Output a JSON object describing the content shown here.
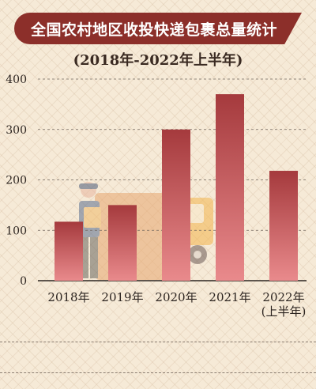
{
  "chart_data": {
    "type": "bar",
    "title": "全国农村地区收投快递包裹总量统计",
    "subtitle": "(2018年-2022年上半年)",
    "categories": [
      "2018年",
      "2019年",
      "2020年",
      "2021年",
      "2022年\n(上半年)"
    ],
    "values": [
      117,
      150,
      300,
      370,
      218
    ],
    "ylim": [
      0,
      400
    ],
    "yticks": [
      0,
      100,
      200,
      300,
      400
    ],
    "grid": true,
    "legend": "none",
    "colors": {
      "bar_top": "#a53a3d",
      "bar_bottom": "#e98a8c",
      "title_bg": "#8c2f2a"
    }
  }
}
